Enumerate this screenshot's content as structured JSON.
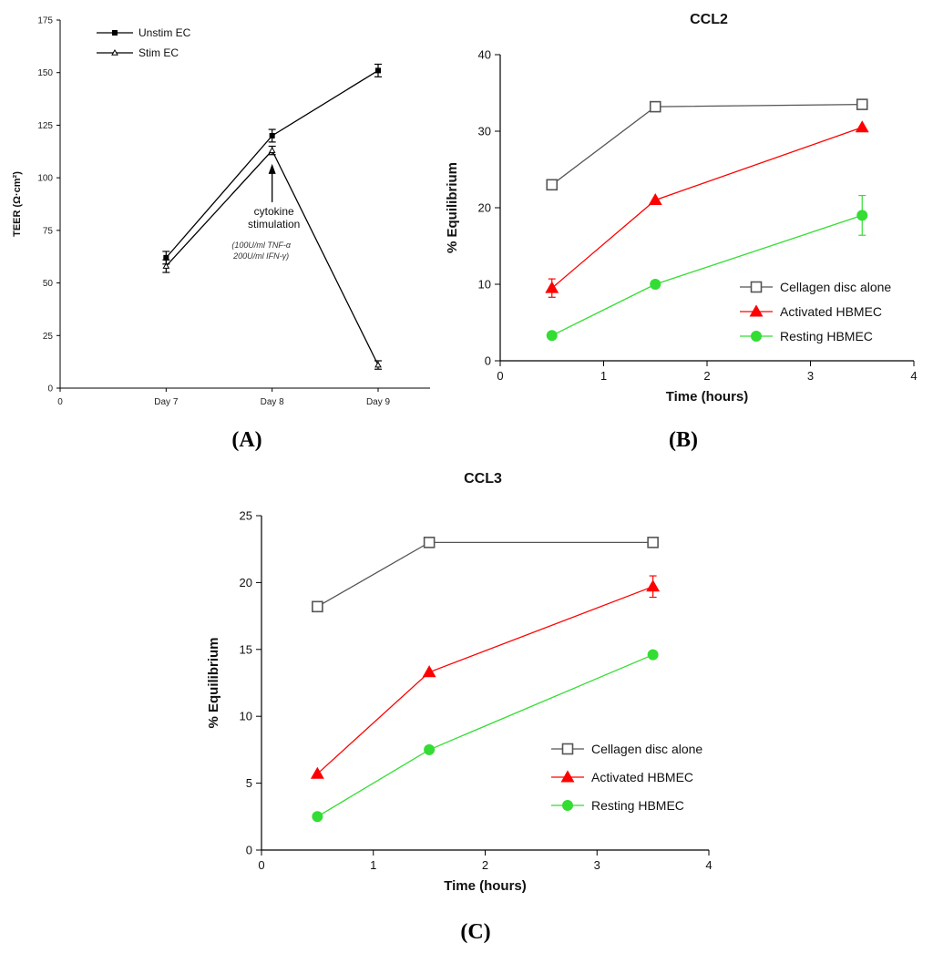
{
  "chart_data": [
    {
      "id": "A",
      "type": "line",
      "panel_label": "(A)",
      "title": "",
      "xlabel": "",
      "ylabel": "TEER (Ω·cm²)",
      "ylim": [
        0,
        175
      ],
      "yticks": [
        0,
        25,
        50,
        75,
        100,
        125,
        150,
        175
      ],
      "x_tick_labels": [
        "0",
        "Day 7",
        "Day 8",
        "Day 9"
      ],
      "x_tick_values": [
        0,
        1,
        2,
        3
      ],
      "series": [
        {
          "name": "Unstim EC",
          "color": "#000000",
          "marker": "square-filled",
          "x": [
            1,
            2,
            3
          ],
          "y": [
            62,
            120,
            151
          ],
          "err": [
            3,
            3,
            3
          ]
        },
        {
          "name": "Stim EC",
          "color": "#000000",
          "marker": "triangle-open",
          "x": [
            1,
            2,
            3
          ],
          "y": [
            58,
            113,
            11
          ],
          "err": [
            3,
            2,
            2
          ]
        }
      ],
      "annotation": {
        "lines": [
          "cytokine",
          "stimulation"
        ],
        "sub_lines": [
          "(100U/ml TNF-α",
          "200U/ml IFN-γ)"
        ],
        "arrow_at": {
          "x": 2,
          "y": 104
        }
      },
      "legend_position": "top-left"
    },
    {
      "id": "B",
      "type": "line",
      "panel_label": "(B)",
      "title": "CCL2",
      "xlabel": "Time (hours)",
      "ylabel": "% Equilibrium",
      "xlim": [
        0,
        4
      ],
      "ylim": [
        0,
        40
      ],
      "xticks": [
        0,
        1,
        2,
        3,
        4
      ],
      "yticks": [
        0,
        10,
        20,
        30,
        40
      ],
      "series": [
        {
          "name": "Cellagen disc alone",
          "color": "#555555",
          "marker": "square-open",
          "x": [
            0.5,
            1.5,
            3.5
          ],
          "y": [
            23,
            33.2,
            33.5
          ],
          "err": [
            0,
            0,
            0
          ]
        },
        {
          "name": "Activated HBMEC",
          "color": "#ff0000",
          "marker": "triangle-filled",
          "x": [
            0.5,
            1.5,
            3.5
          ],
          "y": [
            9.5,
            21,
            30.5
          ],
          "err": [
            1.2,
            0,
            0
          ]
        },
        {
          "name": "Resting HBMEC",
          "color": "#33dd33",
          "marker": "circle-filled",
          "x": [
            0.5,
            1.5,
            3.5
          ],
          "y": [
            3.3,
            10,
            19
          ],
          "err": [
            0,
            0,
            2.6
          ]
        }
      ],
      "legend_position": "bottom-right"
    },
    {
      "id": "C",
      "type": "line",
      "panel_label": "(C)",
      "title": "CCL3",
      "xlabel": "Time (hours)",
      "ylabel": "% Equilibrium",
      "xlim": [
        0,
        4
      ],
      "ylim": [
        0,
        25
      ],
      "xticks": [
        0,
        1,
        2,
        3,
        4
      ],
      "yticks": [
        0,
        5,
        10,
        15,
        20,
        25
      ],
      "series": [
        {
          "name": "Cellagen disc alone",
          "color": "#555555",
          "marker": "square-open",
          "x": [
            0.5,
            1.5,
            3.5
          ],
          "y": [
            18.2,
            23,
            23
          ],
          "err": [
            0,
            0,
            0
          ]
        },
        {
          "name": "Activated HBMEC",
          "color": "#ff0000",
          "marker": "triangle-filled",
          "x": [
            0.5,
            1.5,
            3.5
          ],
          "y": [
            5.7,
            13.3,
            19.7
          ],
          "err": [
            0,
            0,
            0.8
          ]
        },
        {
          "name": "Resting HBMEC",
          "color": "#33dd33",
          "marker": "circle-filled",
          "x": [
            0.5,
            1.5,
            3.5
          ],
          "y": [
            2.5,
            7.5,
            14.6
          ],
          "err": [
            0,
            0,
            0
          ]
        }
      ],
      "legend_position": "bottom-right"
    }
  ]
}
